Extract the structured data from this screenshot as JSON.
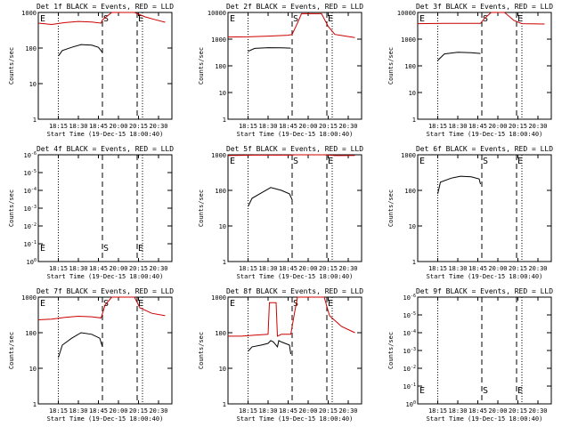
{
  "chart_data": [
    {
      "type": "line",
      "title": "Det 1f BLACK = Events, RED = LLD",
      "xlabel": "Start Time (19-Dec-15 18:00:40)",
      "ylabel": "Counts/sec",
      "y_scale": "log",
      "y_ticks": [
        "1",
        "10",
        "100",
        "1000"
      ],
      "x_ticks": [
        "18:15",
        "18:30",
        "18:45",
        "20:00",
        "20:15",
        "20:30"
      ],
      "markers": [
        {
          "label": "E",
          "x": 0.0
        },
        {
          "label": "S",
          "x": 0.48
        },
        {
          "label": "E",
          "x": 0.74
        }
      ],
      "series": [
        {
          "color": "#000000",
          "points": [
            [
              0.15,
              60
            ],
            [
              0.18,
              85
            ],
            [
              0.25,
              105
            ],
            [
              0.32,
              125
            ],
            [
              0.4,
              120
            ],
            [
              0.45,
              105
            ],
            [
              0.48,
              75
            ]
          ]
        },
        {
          "color": "#cc0000",
          "points": [
            [
              0.0,
              500
            ],
            [
              0.1,
              460
            ],
            [
              0.2,
              520
            ],
            [
              0.3,
              560
            ],
            [
              0.4,
              540
            ],
            [
              0.47,
              500
            ],
            [
              0.48,
              620
            ],
            [
              0.55,
              1000
            ],
            [
              0.6,
              1000
            ],
            [
              0.72,
              1000
            ],
            [
              0.8,
              750
            ],
            [
              0.88,
              620
            ],
            [
              0.95,
              530
            ]
          ]
        }
      ]
    },
    {
      "type": "line",
      "title": "Det 2f BLACK = Events, RED = LLD",
      "xlabel": "Start Time (19-Dec-15 18:00:40)",
      "ylabel": "Counts/sec",
      "y_scale": "log",
      "y_ticks": [
        "1",
        "10",
        "100",
        "1000",
        "10000"
      ],
      "x_ticks": [
        "18:15",
        "18:30",
        "18:45",
        "20:00",
        "20:15",
        "20:30"
      ],
      "markers": [
        {
          "label": "E",
          "x": 0.0
        },
        {
          "label": "S",
          "x": 0.48
        },
        {
          "label": "E",
          "x": 0.74
        }
      ],
      "series": [
        {
          "color": "#000000",
          "points": [
            [
              0.15,
              350
            ],
            [
              0.2,
              450
            ],
            [
              0.3,
              480
            ],
            [
              0.4,
              470
            ],
            [
              0.47,
              460
            ]
          ]
        },
        {
          "color": "#cc0000",
          "points": [
            [
              0.0,
              1200
            ],
            [
              0.15,
              1220
            ],
            [
              0.3,
              1300
            ],
            [
              0.45,
              1400
            ],
            [
              0.48,
              1500
            ],
            [
              0.52,
              4000
            ],
            [
              0.55,
              9000
            ],
            [
              0.7,
              9000
            ],
            [
              0.75,
              3000
            ],
            [
              0.8,
              1500
            ],
            [
              0.95,
              1150
            ]
          ]
        }
      ]
    },
    {
      "type": "line",
      "title": "Det 3f BLACK = Events, RED = LLD",
      "xlabel": "Start Time (19-Dec-15 18:00:40)",
      "ylabel": "Counts/sec",
      "y_scale": "log",
      "y_ticks": [
        "1",
        "10",
        "100",
        "1000",
        "10000"
      ],
      "x_ticks": [
        "18:15",
        "18:30",
        "18:45",
        "20:00",
        "20:15",
        "20:30"
      ],
      "markers": [
        {
          "label": "E",
          "x": 0.0
        },
        {
          "label": "S",
          "x": 0.48
        },
        {
          "label": "E",
          "x": 0.74
        }
      ],
      "series": [
        {
          "color": "#000000",
          "points": [
            [
              0.15,
              160
            ],
            [
              0.2,
              280
            ],
            [
              0.3,
              320
            ],
            [
              0.4,
              310
            ],
            [
              0.47,
              290
            ]
          ]
        },
        {
          "color": "#cc0000",
          "points": [
            [
              0.0,
              3800
            ],
            [
              0.2,
              3900
            ],
            [
              0.47,
              3900
            ],
            [
              0.5,
              6000
            ],
            [
              0.55,
              10000
            ],
            [
              0.65,
              10000
            ],
            [
              0.72,
              5000
            ],
            [
              0.78,
              3800
            ],
            [
              0.95,
              3700
            ]
          ]
        }
      ]
    },
    {
      "type": "line",
      "title": "Det 4f BLACK = Events, RED = LLD",
      "xlabel": "Start Time (19-Dec-15 18:00:40)",
      "ylabel": "Counts/sec",
      "y_scale": "log",
      "y_ticks": [
        "10^0",
        "10^-1",
        "10^-2",
        "10^-3",
        "10^-4",
        "10^-5",
        "10^-6"
      ],
      "x_ticks": [
        "18:15",
        "18:30",
        "18:45",
        "20:00",
        "20:15",
        "20:30"
      ],
      "markers": [
        {
          "label": "E",
          "x": 0.0
        },
        {
          "label": "S",
          "x": 0.48
        },
        {
          "label": "E",
          "x": 0.74
        }
      ],
      "series": []
    },
    {
      "type": "line",
      "title": "Det 5f BLACK = Events, RED = LLD",
      "xlabel": "Start Time (19-Dec-15 18:00:40)",
      "ylabel": "Counts/sec",
      "y_scale": "log",
      "y_ticks": [
        "1",
        "10",
        "100",
        "1000"
      ],
      "x_ticks": [
        "18:15",
        "18:30",
        "18:45",
        "20:00",
        "20:15",
        "20:30"
      ],
      "markers": [
        {
          "label": "E",
          "x": 0.0
        },
        {
          "label": "S",
          "x": 0.48
        },
        {
          "label": "E",
          "x": 0.74
        }
      ],
      "series": [
        {
          "color": "#000000",
          "points": [
            [
              0.15,
              35
            ],
            [
              0.18,
              60
            ],
            [
              0.25,
              85
            ],
            [
              0.32,
              120
            ],
            [
              0.4,
              100
            ],
            [
              0.46,
              80
            ],
            [
              0.48,
              55
            ]
          ]
        },
        {
          "color": "#cc0000",
          "points": [
            [
              0.0,
              950
            ],
            [
              0.2,
              980
            ],
            [
              0.47,
              980
            ],
            [
              0.5,
              1000
            ],
            [
              0.72,
              1000
            ],
            [
              0.8,
              950
            ],
            [
              0.95,
              960
            ]
          ]
        }
      ]
    },
    {
      "type": "line",
      "title": "Det 6f BLACK = Events, RED = LLD",
      "xlabel": "Start Time (19-Dec-15 18:00:40)",
      "ylabel": "Counts/sec",
      "y_scale": "log",
      "y_ticks": [
        "1",
        "10",
        "100",
        "1000"
      ],
      "x_ticks": [
        "18:15",
        "18:30",
        "18:45",
        "20:00",
        "20:15",
        "20:30"
      ],
      "markers": [
        {
          "label": "E",
          "x": 0.0
        },
        {
          "label": "S",
          "x": 0.48
        },
        {
          "label": "E",
          "x": 0.74
        }
      ],
      "series": [
        {
          "color": "#000000",
          "points": [
            [
              0.15,
              80
            ],
            [
              0.17,
              170
            ],
            [
              0.25,
              220
            ],
            [
              0.32,
              250
            ],
            [
              0.4,
              240
            ],
            [
              0.46,
              210
            ],
            [
              0.47,
              150
            ]
          ]
        }
      ]
    },
    {
      "type": "line",
      "title": "Det 7f BLACK = Events, RED = LLD",
      "xlabel": "Start Time (19-Dec-15 18:00:40)",
      "ylabel": "Counts/sec",
      "y_scale": "log",
      "y_ticks": [
        "1",
        "10",
        "100",
        "1000"
      ],
      "x_ticks": [
        "18:15",
        "18:30",
        "18:45",
        "20:00",
        "20:15",
        "20:30"
      ],
      "markers": [
        {
          "label": "E",
          "x": 0.0
        },
        {
          "label": "S",
          "x": 0.48
        },
        {
          "label": "E",
          "x": 0.74
        }
      ],
      "series": [
        {
          "color": "#000000",
          "points": [
            [
              0.15,
              20
            ],
            [
              0.18,
              45
            ],
            [
              0.25,
              70
            ],
            [
              0.32,
              100
            ],
            [
              0.4,
              90
            ],
            [
              0.46,
              70
            ],
            [
              0.48,
              40
            ]
          ]
        },
        {
          "color": "#cc0000",
          "points": [
            [
              0.0,
              230
            ],
            [
              0.1,
              240
            ],
            [
              0.2,
              270
            ],
            [
              0.3,
              290
            ],
            [
              0.4,
              280
            ],
            [
              0.47,
              260
            ],
            [
              0.5,
              600
            ],
            [
              0.55,
              1000
            ],
            [
              0.72,
              1000
            ],
            [
              0.76,
              500
            ],
            [
              0.85,
              350
            ],
            [
              0.95,
              300
            ]
          ]
        }
      ]
    },
    {
      "type": "line",
      "title": "Det 8f BLACK = Events, RED = LLD",
      "xlabel": "Start Time (19-Dec-15 18:00:40)",
      "ylabel": "Counts/sec",
      "y_scale": "log",
      "y_ticks": [
        "1",
        "10",
        "100",
        "1000"
      ],
      "x_ticks": [
        "18:15",
        "18:30",
        "18:45",
        "20:00",
        "20:15",
        "20:30"
      ],
      "markers": [
        {
          "label": "E",
          "x": 0.0
        },
        {
          "label": "S",
          "x": 0.48
        },
        {
          "label": "E",
          "x": 0.74
        }
      ],
      "series": [
        {
          "color": "#000000",
          "points": [
            [
              0.15,
              30
            ],
            [
              0.18,
              40
            ],
            [
              0.25,
              45
            ],
            [
              0.3,
              50
            ],
            [
              0.32,
              60
            ],
            [
              0.34,
              55
            ],
            [
              0.37,
              40
            ],
            [
              0.38,
              60
            ],
            [
              0.4,
              55
            ],
            [
              0.46,
              45
            ],
            [
              0.47,
              25
            ]
          ]
        },
        {
          "color": "#cc0000",
          "points": [
            [
              0.0,
              80
            ],
            [
              0.1,
              80
            ],
            [
              0.2,
              85
            ],
            [
              0.3,
              90
            ],
            [
              0.31,
              700
            ],
            [
              0.36,
              700
            ],
            [
              0.37,
              80
            ],
            [
              0.4,
              90
            ],
            [
              0.47,
              90
            ],
            [
              0.5,
              400
            ],
            [
              0.52,
              1000
            ],
            [
              0.72,
              1000
            ],
            [
              0.76,
              300
            ],
            [
              0.85,
              150
            ],
            [
              0.95,
              100
            ]
          ]
        }
      ]
    },
    {
      "type": "line",
      "title": "Det 9f BLACK = Events, RED = LLD",
      "xlabel": "Start Time (19-Dec-15 18:00:40)",
      "ylabel": "Counts/sec",
      "y_scale": "log",
      "y_ticks": [
        "10^0",
        "10^-1",
        "10^-2",
        "10^-3",
        "10^-4",
        "10^-5",
        "10^-6"
      ],
      "x_ticks": [
        "18:15",
        "18:30",
        "18:45",
        "20:00",
        "20:15",
        "20:30"
      ],
      "markers": [
        {
          "label": "E",
          "x": 0.0
        },
        {
          "label": "S",
          "x": 0.48
        },
        {
          "label": "E",
          "x": 0.74
        }
      ],
      "series": []
    }
  ]
}
